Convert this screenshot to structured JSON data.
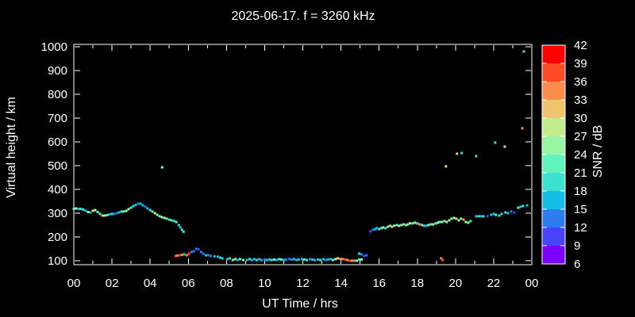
{
  "title": "2025-06-17. f = 3260 kHz",
  "x_axis": {
    "label": "UT Time / hrs",
    "tick_labels": [
      "00",
      "02",
      "04",
      "06",
      "08",
      "10",
      "12",
      "14",
      "16",
      "18",
      "20",
      "22",
      "00"
    ],
    "tick_hours": [
      0,
      2,
      4,
      6,
      8,
      10,
      12,
      14,
      16,
      18,
      20,
      22,
      24
    ],
    "minor_tick_every_hours": 1
  },
  "y_axis": {
    "label": "Virtual height / km",
    "tick_values": [
      100,
      200,
      300,
      400,
      500,
      600,
      700,
      800,
      900,
      1000
    ]
  },
  "colorbar": {
    "label": "SNR / dB",
    "tick_values": [
      6,
      9,
      12,
      15,
      18,
      21,
      24,
      27,
      30,
      33,
      36,
      39,
      42
    ],
    "segments": [
      {
        "min": 6,
        "max": 9,
        "color": "#7B00FA"
      },
      {
        "min": 9,
        "max": 12,
        "color": "#4A41FB"
      },
      {
        "min": 12,
        "max": 15,
        "color": "#2F7BF2"
      },
      {
        "min": 15,
        "max": 18,
        "color": "#15BDE4"
      },
      {
        "min": 18,
        "max": 21,
        "color": "#3BE2D0"
      },
      {
        "min": 21,
        "max": 24,
        "color": "#60F3BD"
      },
      {
        "min": 24,
        "max": 27,
        "color": "#98F5A3"
      },
      {
        "min": 27,
        "max": 30,
        "color": "#C2EC8E"
      },
      {
        "min": 30,
        "max": 33,
        "color": "#F0C46F"
      },
      {
        "min": 33,
        "max": 36,
        "color": "#FB8C4D"
      },
      {
        "min": 36,
        "max": 39,
        "color": "#FF4A27"
      },
      {
        "min": 39,
        "max": 42,
        "color": "#FF0000"
      }
    ]
  },
  "chart_data": {
    "type": "scatter",
    "title": "2025-06-17. f = 3260 kHz",
    "xlabel": "UT Time / hrs",
    "ylabel": "Virtual height / km",
    "colorbar_label": "SNR / dB",
    "xlim": [
      0,
      24
    ],
    "ylim": [
      100,
      1000
    ],
    "snr_lim": [
      6,
      42
    ],
    "grid": false,
    "background": "#000000",
    "point_format": "[ut_hour, virtual_height_km, snr_db]",
    "series": [
      {
        "name": "night-f-layer-trace",
        "points": [
          [
            0.0,
            318,
            22.5
          ],
          [
            0.12,
            320,
            25.5
          ],
          [
            0.25,
            318,
            16.5
          ],
          [
            0.37,
            318,
            19.5
          ],
          [
            0.5,
            315,
            19.5
          ],
          [
            0.62,
            310,
            16.5
          ],
          [
            0.75,
            305,
            25.5
          ],
          [
            0.87,
            303,
            16.5
          ],
          [
            1.0,
            310,
            28.5
          ],
          [
            1.12,
            313,
            25.5
          ],
          [
            1.25,
            305,
            22.5
          ],
          [
            1.37,
            297,
            22.5
          ],
          [
            1.5,
            290,
            31.5
          ],
          [
            1.62,
            290,
            25.5
          ],
          [
            1.75,
            292,
            22.5
          ],
          [
            1.87,
            295,
            16.5
          ],
          [
            2.0,
            297,
            19.5
          ],
          [
            2.12,
            297,
            13.5
          ],
          [
            2.25,
            300,
            13.5
          ],
          [
            2.37,
            303,
            16.5
          ],
          [
            2.5,
            307,
            19.5
          ],
          [
            2.62,
            307,
            22.5
          ],
          [
            2.75,
            310,
            28.5
          ],
          [
            2.87,
            317,
            25.5
          ],
          [
            3.0,
            323,
            22.5
          ],
          [
            3.12,
            330,
            19.5
          ],
          [
            3.25,
            335,
            16.5
          ],
          [
            3.37,
            340,
            13.5
          ],
          [
            3.5,
            340,
            16.5
          ],
          [
            3.62,
            333,
            16.5
          ],
          [
            3.75,
            327,
            13.5
          ],
          [
            3.87,
            320,
            16.5
          ],
          [
            4.0,
            313,
            19.5
          ],
          [
            4.12,
            307,
            22.5
          ],
          [
            4.25,
            300,
            28.5
          ],
          [
            4.37,
            293,
            25.5
          ],
          [
            4.5,
            287,
            22.5
          ],
          [
            4.62,
            283,
            28.5
          ],
          [
            4.75,
            280,
            25.5
          ],
          [
            4.87,
            277,
            22.5
          ],
          [
            5.0,
            273,
            19.5
          ],
          [
            5.12,
            270,
            22.5
          ],
          [
            5.25,
            267,
            19.5
          ],
          [
            5.37,
            263,
            22.5
          ],
          [
            5.5,
            250,
            19.5
          ],
          [
            5.58,
            240,
            16.5
          ],
          [
            5.67,
            230,
            19.5
          ],
          [
            5.75,
            222,
            19.5
          ]
        ]
      },
      {
        "name": "day-e-layer-trace",
        "points": [
          [
            5.33,
            120,
            37.5
          ],
          [
            5.42,
            122,
            34.5
          ],
          [
            5.54,
            123,
            37.5
          ],
          [
            5.67,
            125,
            34.5
          ],
          [
            5.79,
            127,
            16.5
          ],
          [
            5.92,
            123,
            34.5
          ],
          [
            6.04,
            130,
            37.5
          ],
          [
            6.17,
            137,
            13.5
          ],
          [
            6.29,
            140,
            13.5
          ],
          [
            6.42,
            150,
            13.5
          ],
          [
            6.54,
            148,
            10.5
          ],
          [
            6.67,
            137,
            13.5
          ],
          [
            6.79,
            130,
            13.5
          ],
          [
            6.92,
            123,
            16.5
          ],
          [
            7.04,
            123,
            13.5
          ],
          [
            7.17,
            120,
            13.5
          ],
          [
            7.37,
            118,
            16.5
          ],
          [
            7.54,
            117,
            16.5
          ],
          [
            7.67,
            113,
            19.5
          ],
          [
            7.79,
            110,
            16.5
          ],
          [
            8.04,
            107,
            16.5
          ],
          [
            8.17,
            110,
            19.5
          ],
          [
            8.33,
            103,
            25.5
          ],
          [
            8.46,
            107,
            25.5
          ],
          [
            8.58,
            103,
            16.5
          ],
          [
            8.71,
            107,
            22.5
          ],
          [
            8.87,
            103,
            28.5
          ],
          [
            9.08,
            103,
            16.5
          ],
          [
            9.21,
            107,
            19.5
          ],
          [
            9.33,
            103,
            16.5
          ],
          [
            9.46,
            107,
            16.5
          ],
          [
            9.58,
            103,
            19.5
          ],
          [
            9.71,
            107,
            16.5
          ],
          [
            9.83,
            103,
            16.5
          ],
          [
            10.0,
            105,
            13.5
          ],
          [
            10.12,
            103,
            16.5
          ],
          [
            10.25,
            105,
            16.5
          ],
          [
            10.37,
            103,
            19.5
          ],
          [
            10.5,
            105,
            22.5
          ],
          [
            10.62,
            103,
            16.5
          ],
          [
            10.75,
            107,
            19.5
          ],
          [
            10.87,
            105,
            22.5
          ],
          [
            11.0,
            103,
            16.5
          ],
          [
            11.12,
            105,
            13.5
          ],
          [
            11.29,
            107,
            13.5
          ],
          [
            11.42,
            105,
            13.5
          ],
          [
            11.54,
            107,
            16.5
          ],
          [
            11.67,
            103,
            16.5
          ],
          [
            11.79,
            105,
            16.5
          ],
          [
            11.96,
            107,
            16.5
          ],
          [
            12.08,
            105,
            19.5
          ],
          [
            12.21,
            103,
            19.5
          ],
          [
            12.37,
            107,
            13.5
          ],
          [
            12.5,
            105,
            16.5
          ],
          [
            12.62,
            103,
            16.5
          ],
          [
            12.79,
            105,
            16.5
          ],
          [
            12.92,
            103,
            19.5
          ],
          [
            13.08,
            107,
            16.5
          ],
          [
            13.21,
            103,
            13.5
          ],
          [
            13.33,
            105,
            16.5
          ],
          [
            13.46,
            107,
            16.5
          ],
          [
            13.58,
            103,
            22.5
          ],
          [
            13.71,
            107,
            25.5
          ],
          [
            13.83,
            110,
            31.5
          ],
          [
            13.96,
            108,
            34.5
          ],
          [
            14.08,
            107,
            34.5
          ],
          [
            14.21,
            105,
            37.5
          ],
          [
            14.33,
            103,
            34.5
          ],
          [
            14.46,
            100,
            37.5
          ],
          [
            14.58,
            100,
            34.5
          ],
          [
            14.71,
            100,
            34.5
          ],
          [
            14.83,
            100,
            22.5
          ],
          [
            14.96,
            105,
            22.5
          ],
          [
            15.08,
            105,
            25.5
          ]
        ]
      },
      {
        "name": "sunset-transition-cluster",
        "points": [
          [
            14.96,
            130,
            19.5
          ],
          [
            15.08,
            127,
            13.5
          ],
          [
            15.21,
            120,
            10.5
          ],
          [
            15.33,
            123,
            13.5
          ]
        ]
      },
      {
        "name": "evening-sporadic-e-pair",
        "points": [
          [
            19.25,
            110,
            34.5
          ],
          [
            19.33,
            103,
            37.5
          ]
        ]
      },
      {
        "name": "evening-f-layer-trace",
        "points": [
          [
            15.54,
            223,
            10.5
          ],
          [
            15.67,
            230,
            13.5
          ],
          [
            15.79,
            233,
            16.5
          ],
          [
            15.87,
            237,
            16.5
          ],
          [
            16.0,
            233,
            19.5
          ],
          [
            16.12,
            237,
            22.5
          ],
          [
            16.21,
            240,
            25.5
          ],
          [
            16.33,
            237,
            19.5
          ],
          [
            16.46,
            243,
            25.5
          ],
          [
            16.58,
            247,
            22.5
          ],
          [
            16.67,
            243,
            31.5
          ],
          [
            16.79,
            247,
            25.5
          ],
          [
            16.92,
            250,
            22.5
          ],
          [
            17.04,
            247,
            25.5
          ],
          [
            17.17,
            250,
            28.5
          ],
          [
            17.29,
            253,
            22.5
          ],
          [
            17.42,
            250,
            25.5
          ],
          [
            17.5,
            253,
            22.5
          ],
          [
            17.62,
            257,
            28.5
          ],
          [
            17.75,
            257,
            22.5
          ],
          [
            17.87,
            260,
            25.5
          ],
          [
            18.0,
            257,
            22.5
          ],
          [
            18.12,
            253,
            34.5
          ],
          [
            18.25,
            250,
            22.5
          ],
          [
            18.37,
            247,
            19.5
          ],
          [
            18.46,
            247,
            16.5
          ],
          [
            18.58,
            250,
            25.5
          ],
          [
            18.71,
            253,
            22.5
          ],
          [
            18.83,
            253,
            25.5
          ],
          [
            18.96,
            257,
            22.5
          ],
          [
            19.08,
            260,
            28.5
          ],
          [
            19.17,
            263,
            22.5
          ],
          [
            19.29,
            263,
            25.5
          ],
          [
            19.42,
            267,
            22.5
          ],
          [
            19.54,
            263,
            28.5
          ],
          [
            19.67,
            270,
            25.5
          ],
          [
            19.79,
            277,
            22.5
          ],
          [
            19.92,
            280,
            25.5
          ],
          [
            20.04,
            277,
            31.5
          ],
          [
            20.17,
            270,
            25.5
          ],
          [
            20.29,
            277,
            22.5
          ],
          [
            20.42,
            273,
            34.5
          ],
          [
            20.54,
            263,
            25.5
          ],
          [
            20.67,
            260,
            25.5
          ],
          [
            20.79,
            267,
            19.5
          ],
          [
            21.08,
            287,
            16.5
          ],
          [
            21.21,
            287,
            19.5
          ],
          [
            21.33,
            287,
            16.5
          ],
          [
            21.46,
            287,
            19.5
          ],
          [
            21.67,
            287,
            10.5
          ],
          [
            21.87,
            293,
            16.5
          ],
          [
            22.0,
            297,
            16.5
          ],
          [
            22.12,
            293,
            22.5
          ],
          [
            22.29,
            290,
            19.5
          ],
          [
            22.42,
            297,
            19.5
          ],
          [
            22.62,
            303,
            19.5
          ],
          [
            22.75,
            300,
            16.5
          ],
          [
            22.92,
            307,
            13.5
          ],
          [
            23.08,
            303,
            10.5
          ],
          [
            23.29,
            323,
            22.5
          ],
          [
            23.42,
            327,
            16.5
          ],
          [
            23.54,
            330,
            19.5
          ],
          [
            23.75,
            333,
            16.5
          ]
        ]
      },
      {
        "name": "isolated-high-echoes",
        "points": [
          [
            4.63,
            493,
            25.5
          ],
          [
            19.5,
            497,
            28.5
          ],
          [
            20.08,
            550,
            31.5
          ],
          [
            20.33,
            553,
            19.5
          ],
          [
            21.08,
            540,
            19.5
          ],
          [
            22.08,
            597,
            19.5
          ],
          [
            22.58,
            580,
            25.5
          ],
          [
            23.5,
            657,
            34.5
          ],
          [
            23.58,
            980,
            19.5
          ]
        ]
      }
    ]
  }
}
